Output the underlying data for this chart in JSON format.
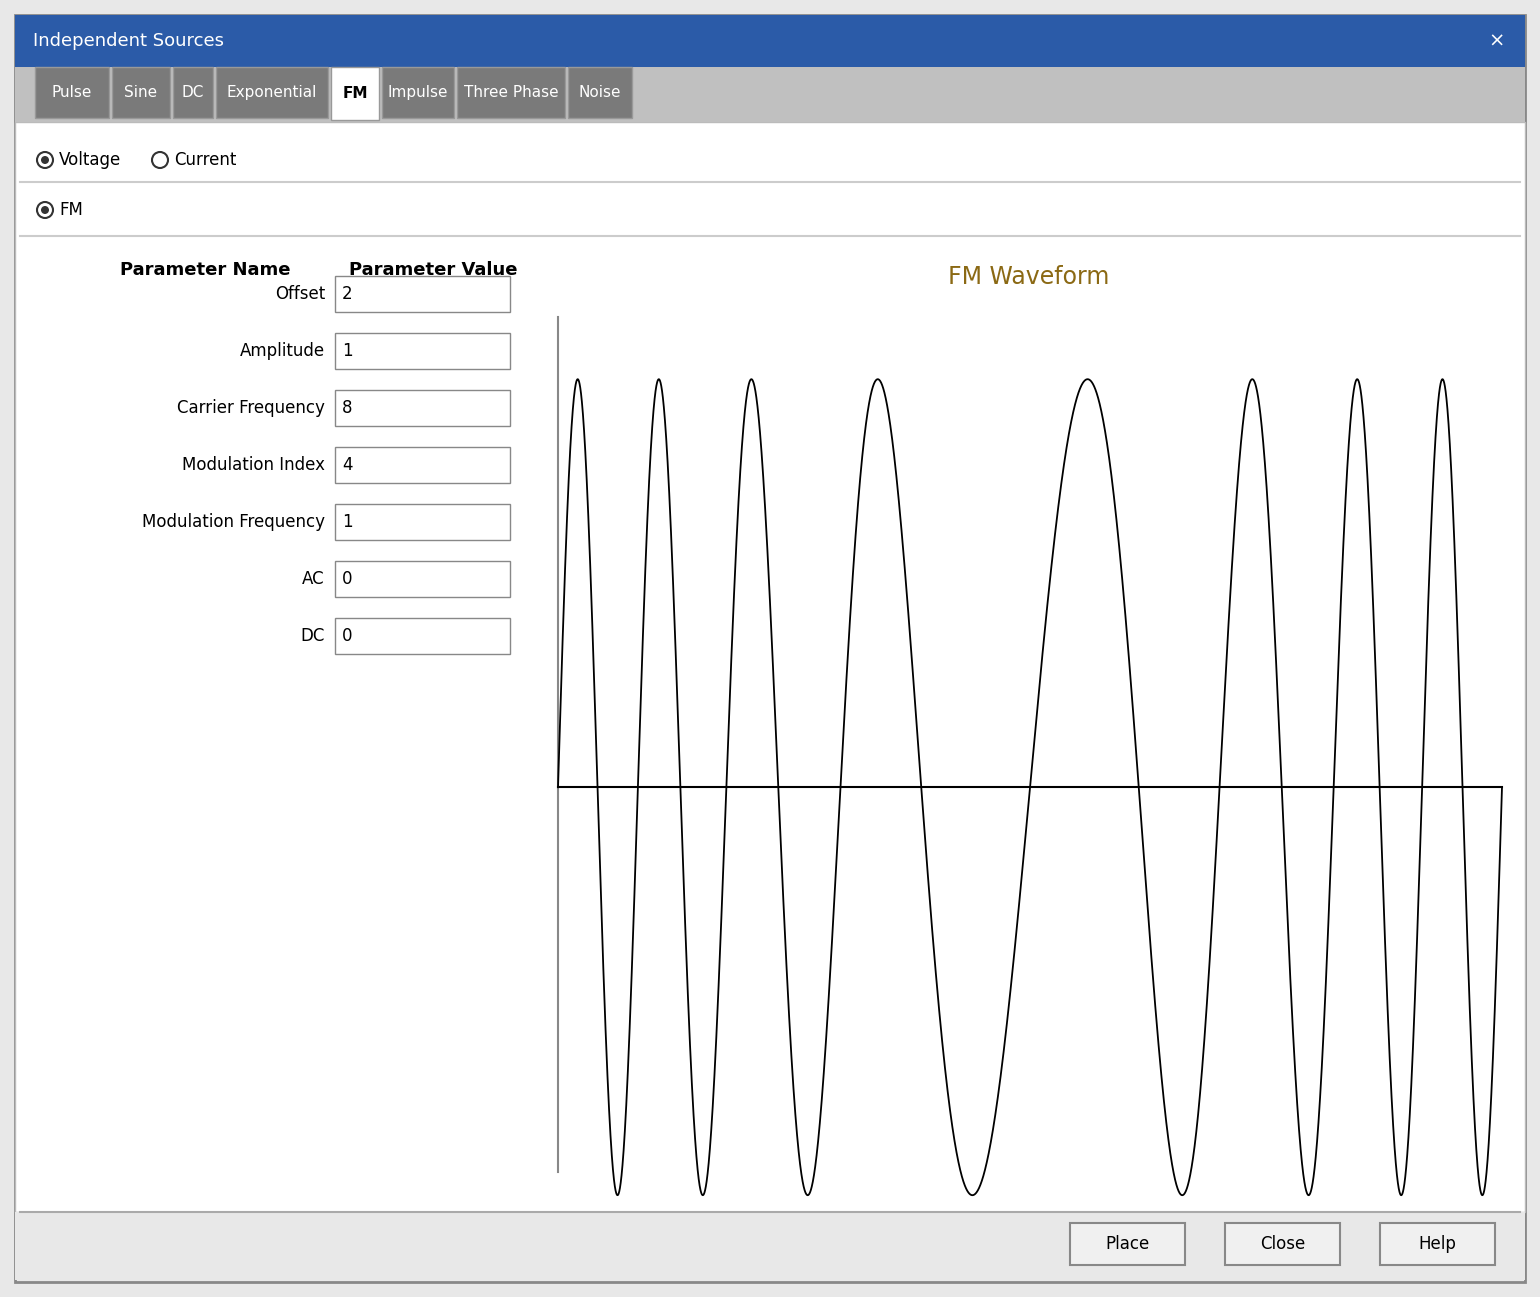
{
  "title": "Independent Sources",
  "title_bar_color": "#2B5BA8",
  "title_text_color": "#FFFFFF",
  "bg_color": "#E8E8E8",
  "panel_bg": "#FFFFFF",
  "tab_labels": [
    "Pulse",
    "Sine",
    "DC",
    "Exponential",
    "FM",
    "Impulse",
    "Three Phase",
    "Noise"
  ],
  "active_tab": "FM",
  "active_tab_color": "#FFFFFF",
  "inactive_tab_color": "#7A7A7A",
  "tab_text_color_inactive": "#FFFFFF",
  "tab_text_color_active": "#000000",
  "param_header1": "Parameter Name",
  "param_header2": "Parameter Value",
  "params": [
    {
      "name": "Offset",
      "value": "2"
    },
    {
      "name": "Amplitude",
      "value": "1"
    },
    {
      "name": "Carrier Frequency",
      "value": "8"
    },
    {
      "name": "Modulation Index",
      "value": "4"
    },
    {
      "name": "Modulation Frequency",
      "value": "1"
    },
    {
      "name": "AC",
      "value": "0"
    },
    {
      "name": "DC",
      "value": "0"
    }
  ],
  "waveform_title": "FM Waveform",
  "fm_amplitude": 1,
  "fm_carrier_freq": 8,
  "fm_mod_index": 4,
  "fm_mod_freq": 1,
  "button_labels": [
    "Place",
    "Close",
    "Help"
  ],
  "separator_color": "#AAAAAA",
  "close_x_color": "#FFFFFF",
  "param_name_color": "#000000",
  "waveform_title_color": "#8B6914"
}
